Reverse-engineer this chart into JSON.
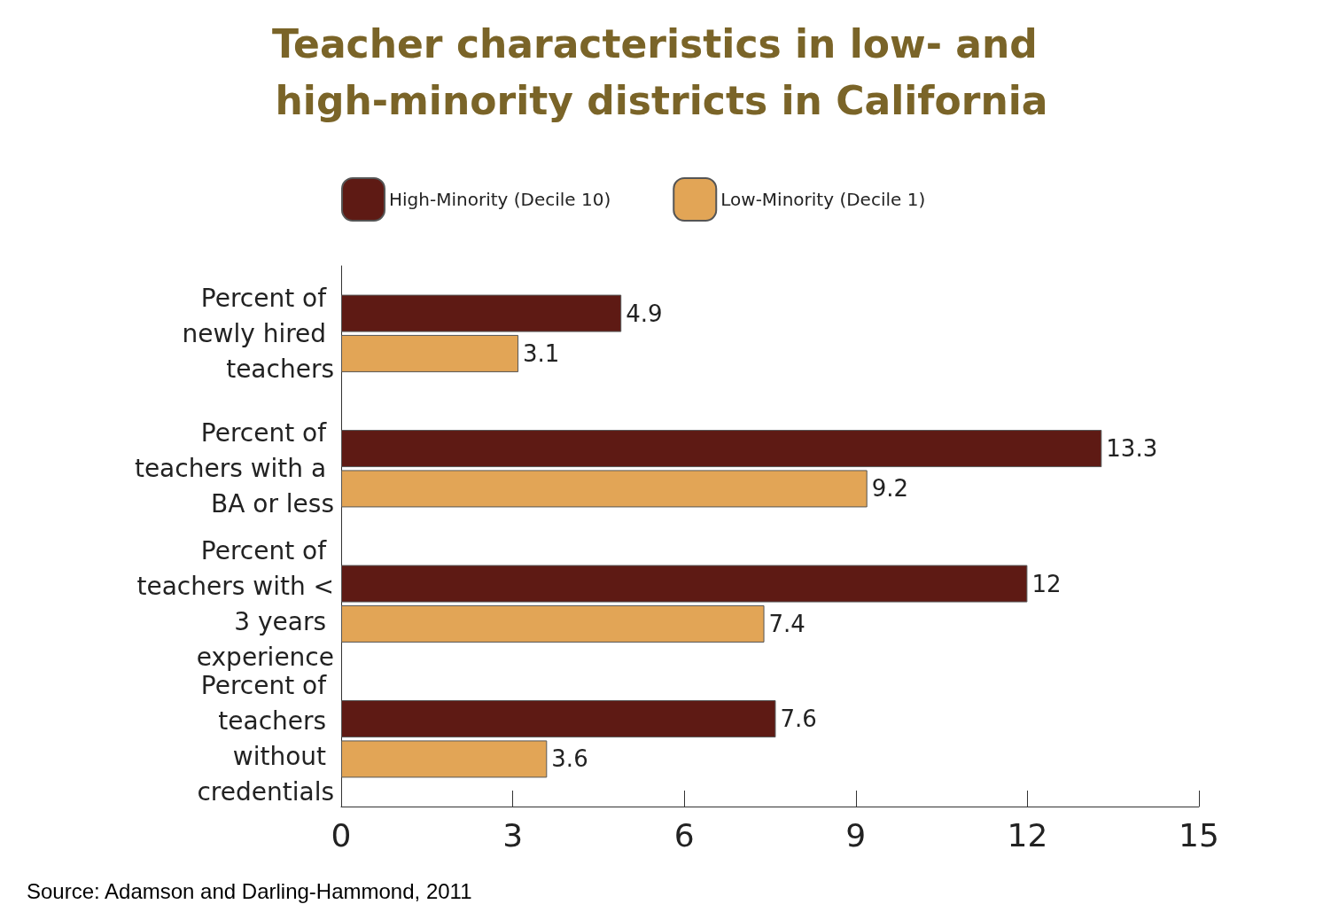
{
  "chart_data": {
    "type": "bar",
    "orientation": "horizontal",
    "title": "Teacher characteristics in low- and high-minority districts in California",
    "categories": [
      "Percent of newly hired teachers",
      "Percent of teachers with a BA or less",
      "Percent of teachers with < 3 years experience",
      "Percent of teachers without credentials"
    ],
    "series": [
      {
        "name": "High-Minority (Decile 10)",
        "color": "#5e1a14",
        "values": [
          4.9,
          13.3,
          12,
          7.6
        ]
      },
      {
        "name": "Low-Minority (Decile 1)",
        "color": "#e2a556",
        "values": [
          3.1,
          9.2,
          7.4,
          3.6
        ]
      }
    ],
    "xlim": [
      0,
      15
    ],
    "xticks": [
      0,
      3,
      6,
      9,
      12,
      15
    ],
    "data_labels": true,
    "grid": false,
    "legend": "top",
    "annotations": [
      "Source: Adamson and Darling-Hammond, 2011"
    ]
  }
}
